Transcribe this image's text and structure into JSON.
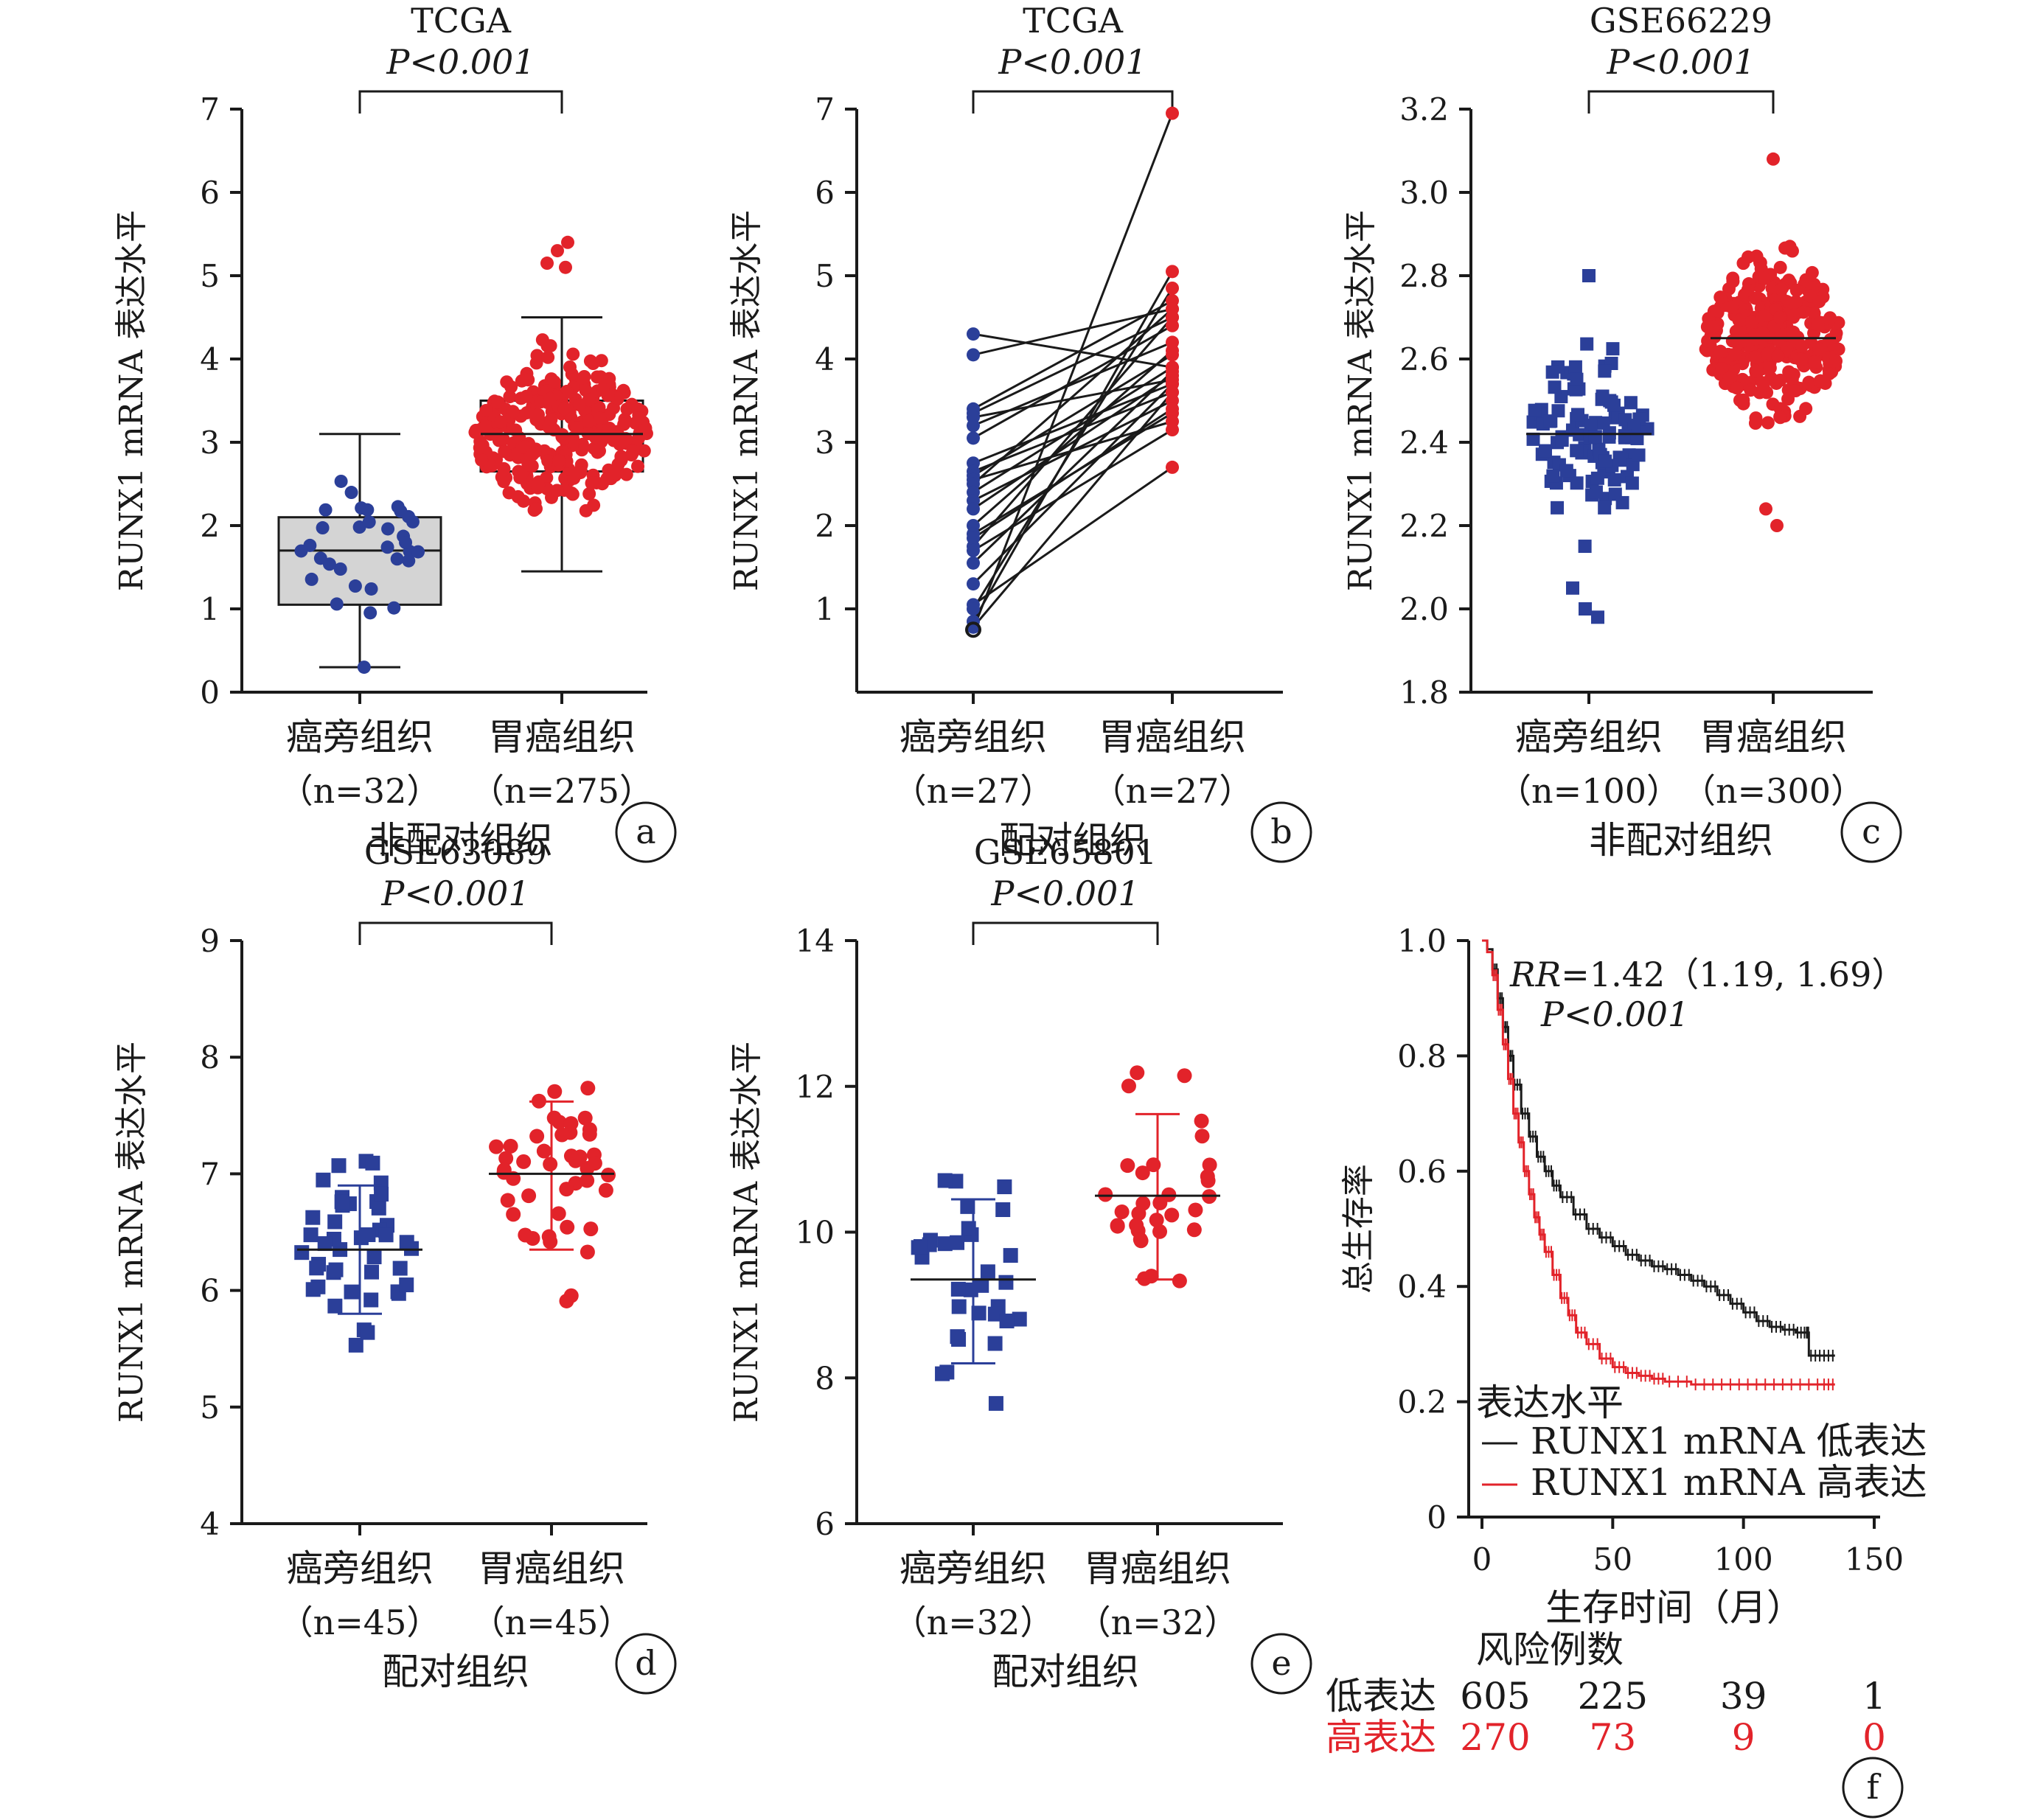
{
  "colors": {
    "blue": "#2b3f99",
    "red": "#e2232a",
    "black": "#1a1a1a",
    "box_fill": "#d4d4d4"
  },
  "chart_data": [
    {
      "id": "a",
      "type": "box-scatter",
      "title": "TCGA",
      "pvalue": "P<0.001",
      "ylabel": "RUNX1 mRNA 表达水平",
      "ylim": [
        0,
        7
      ],
      "yticks": [
        0,
        1,
        2,
        3,
        4,
        5,
        6,
        7
      ],
      "group_caption": "非配对组织",
      "panel_label": "a",
      "groups": [
        {
          "name": "癌旁组织",
          "n_label": "（n=32）",
          "color": "blue",
          "marker": "circle",
          "box": {
            "q1": 1.05,
            "median": 1.7,
            "q3": 2.1,
            "whisker_low": 0.3,
            "whisker_high": 3.1
          }
        },
        {
          "name": "胃癌组织",
          "n_label": "（n=275）",
          "color": "red",
          "marker": "circle",
          "box": {
            "q1": 2.65,
            "median": 3.1,
            "q3": 3.5,
            "whisker_low": 1.45,
            "whisker_high": 4.5
          }
        }
      ]
    },
    {
      "id": "b",
      "type": "paired-line",
      "title": "TCGA",
      "pvalue": "P<0.001",
      "ylabel": "RUNX1 mRNA 表达水平",
      "ylim": [
        0,
        7
      ],
      "yticks": [
        1,
        2,
        3,
        4,
        5,
        6,
        7
      ],
      "group_caption": "配对组织",
      "panel_label": "b",
      "groups": [
        {
          "name": "癌旁组织",
          "n_label": "（n=27）",
          "color": "blue"
        },
        {
          "name": "胃癌组织",
          "n_label": "（n=27）",
          "color": "red"
        }
      ],
      "pairs": [
        [
          4.3,
          3.9
        ],
        [
          4.05,
          4.6
        ],
        [
          3.4,
          4.7
        ],
        [
          3.35,
          4.5
        ],
        [
          3.3,
          3.75
        ],
        [
          3.2,
          4.2
        ],
        [
          3.05,
          4.4
        ],
        [
          2.75,
          3.7
        ],
        [
          2.65,
          3.6
        ],
        [
          2.6,
          4.05
        ],
        [
          2.55,
          3.25
        ],
        [
          2.5,
          4.6
        ],
        [
          2.4,
          3.9
        ],
        [
          2.3,
          3.5
        ],
        [
          2.2,
          3.8
        ],
        [
          2.0,
          4.1
        ],
        [
          1.9,
          3.35
        ],
        [
          1.85,
          3.4
        ],
        [
          1.75,
          4.5
        ],
        [
          1.7,
          3.15
        ],
        [
          1.55,
          3.85
        ],
        [
          1.3,
          3.7
        ],
        [
          1.05,
          2.7
        ],
        [
          1.0,
          4.85
        ],
        [
          0.85,
          5.05
        ],
        [
          0.78,
          3.6
        ],
        [
          0.75,
          6.95
        ]
      ]
    },
    {
      "id": "c",
      "type": "scatter-mean",
      "title": "GSE66229",
      "pvalue": "P<0.001",
      "ylabel": "RUNX1 mRNA 表达水平",
      "ylim": [
        1.8,
        3.2
      ],
      "yticks": [
        1.8,
        2.0,
        2.2,
        2.4,
        2.6,
        2.8,
        3.0,
        3.2
      ],
      "group_caption": "非配对组织",
      "panel_label": "c",
      "groups": [
        {
          "name": "癌旁组织",
          "n_label": "（n=100）",
          "color": "blue",
          "marker": "square",
          "mean": 2.42
        },
        {
          "name": "胃癌组织",
          "n_label": "（n=300）",
          "color": "red",
          "marker": "circle",
          "mean": 2.65
        }
      ]
    },
    {
      "id": "d",
      "type": "scatter-mean-sd",
      "title": "GSE63089",
      "pvalue": "P<0.001",
      "ylabel": "RUNX1 mRNA 表达水平",
      "ylim": [
        4,
        9
      ],
      "yticks": [
        4,
        5,
        6,
        7,
        8,
        9
      ],
      "group_caption": "配对组织",
      "panel_label": "d",
      "groups": [
        {
          "name": "癌旁组织",
          "n_label": "（n=45）",
          "color": "blue",
          "marker": "square",
          "mean": 6.35,
          "sd_low": 5.8,
          "sd_high": 6.9
        },
        {
          "name": "胃癌组织",
          "n_label": "（n=45）",
          "color": "red",
          "marker": "circle",
          "mean": 7.0,
          "sd_low": 6.35,
          "sd_high": 7.62
        }
      ]
    },
    {
      "id": "e",
      "type": "scatter-mean-sd",
      "title": "GSE65801",
      "pvalue": "P<0.001",
      "ylabel": "RUNX1 mRNA 表达水平",
      "ylim": [
        6,
        14
      ],
      "yticks": [
        6,
        8,
        10,
        12,
        14
      ],
      "group_caption": "配对组织",
      "panel_label": "e",
      "groups": [
        {
          "name": "癌旁组织",
          "n_label": "（n=32）",
          "color": "blue",
          "marker": "square",
          "mean": 9.35,
          "sd_low": 8.2,
          "sd_high": 10.45
        },
        {
          "name": "胃癌组织",
          "n_label": "（n=32）",
          "color": "red",
          "marker": "circle",
          "mean": 10.5,
          "sd_low": 9.35,
          "sd_high": 11.62
        }
      ]
    },
    {
      "id": "f",
      "type": "line",
      "title": "",
      "ylabel": "总生存率",
      "xlabel": "生存时间（月）",
      "xlim": [
        0,
        150
      ],
      "ylim": [
        0,
        1.0
      ],
      "xticks": [
        0,
        50,
        100,
        150
      ],
      "yticks": [
        0,
        0.2,
        0.4,
        0.6,
        0.8,
        1.0
      ],
      "ytick_labels": [
        "0",
        "0.2",
        "0.4",
        "0.6",
        "0.8",
        "1.0"
      ],
      "rr_prefix": "RR",
      "rr_text": "=1.42（1.19, 1.69）",
      "pvalue": "P<0.001",
      "legend_title": "表达水平",
      "legend_position": "bottom-left",
      "panel_label": "f",
      "series": [
        {
          "name": "RUNX1 mRNA 低表达",
          "color": "black",
          "x": [
            0,
            2,
            4,
            6,
            8,
            10,
            12,
            15,
            18,
            21,
            24,
            27,
            30,
            35,
            40,
            45,
            50,
            55,
            60,
            65,
            70,
            75,
            80,
            85,
            90,
            95,
            100,
            105,
            110,
            115,
            120,
            124,
            125,
            130,
            135
          ],
          "y": [
            1.0,
            0.985,
            0.95,
            0.9,
            0.85,
            0.8,
            0.75,
            0.7,
            0.66,
            0.625,
            0.6,
            0.575,
            0.555,
            0.525,
            0.5,
            0.485,
            0.47,
            0.455,
            0.445,
            0.435,
            0.43,
            0.42,
            0.41,
            0.4,
            0.385,
            0.37,
            0.355,
            0.34,
            0.33,
            0.325,
            0.32,
            0.32,
            0.28,
            0.28,
            0.28
          ]
        },
        {
          "name": "RUNX1 mRNA 高表达",
          "color": "red",
          "x": [
            0,
            2,
            4,
            6,
            8,
            10,
            12,
            14,
            16,
            18,
            20,
            22,
            24,
            27,
            30,
            33,
            36,
            40,
            45,
            50,
            55,
            60,
            65,
            70,
            80,
            90,
            100,
            110,
            120,
            130,
            135
          ],
          "y": [
            1.0,
            0.98,
            0.94,
            0.88,
            0.82,
            0.76,
            0.7,
            0.65,
            0.6,
            0.56,
            0.52,
            0.49,
            0.46,
            0.42,
            0.38,
            0.35,
            0.32,
            0.3,
            0.275,
            0.26,
            0.25,
            0.245,
            0.24,
            0.235,
            0.23,
            0.23,
            0.23,
            0.23,
            0.23,
            0.23,
            0.23
          ]
        }
      ],
      "risk_table": {
        "title": "风险例数",
        "rows": [
          {
            "label": "低表达",
            "color": "black",
            "values": [
              "605",
              "225",
              "39",
              "1"
            ]
          },
          {
            "label": "高表达",
            "color": "red",
            "values": [
              "270",
              "73",
              "9",
              "0"
            ]
          }
        ]
      }
    }
  ]
}
